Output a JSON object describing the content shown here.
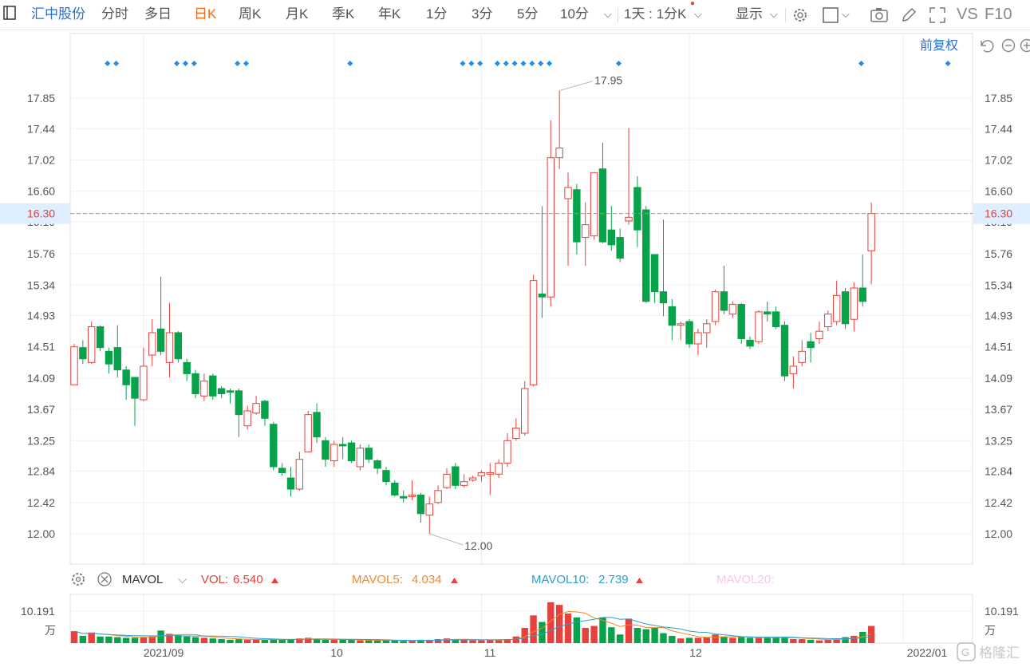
{
  "toolbar": {
    "stock_name": "汇中股份",
    "tabs": [
      "分时",
      "多日",
      "日K",
      "周K",
      "月K",
      "季K",
      "年K",
      "1分",
      "3分",
      "5分",
      "10分"
    ],
    "active_tab": "日K",
    "period_select": "1天 : 1分K",
    "display_label": "显示",
    "vs_label": "VS",
    "f10_label": "F10",
    "restore_label": "前复权"
  },
  "colors": {
    "up": "#e8403c",
    "down": "#07a34a",
    "price_line": "#f07d2a",
    "ma5": "#f08a2a",
    "ma10": "#2aa0d0",
    "ma20": "#f0a0e0",
    "marker": "#1e8cf0"
  },
  "current_price": "16.30",
  "annotations": {
    "high": "17.95",
    "low": "12.00"
  },
  "y_ticks": [
    "17.85",
    "17.44",
    "17.02",
    "16.60",
    "16.19",
    "15.76",
    "15.34",
    "14.93",
    "14.51",
    "14.09",
    "13.67",
    "13.25",
    "12.84",
    "12.42",
    "12.00"
  ],
  "x_ticks": [
    "2021/09",
    "10",
    "11",
    "12",
    "2022/01"
  ],
  "volume": {
    "indicator": "MAVOL",
    "vol_label": "VOL:",
    "vol_value": "6.540",
    "ma5_label": "MAVOL5:",
    "ma5_value": "4.034",
    "ma10_label": "MAVOL10:",
    "ma10_value": "2.739",
    "ma20_label": "MAVOL20:",
    "axis_value": "10.191",
    "axis_unit": "万"
  },
  "watermark": "格隆汇",
  "chart_data": {
    "type": "candlestick",
    "ylim": [
      11.75,
      18.2
    ],
    "candles": [
      [
        14.0,
        14.51,
        14.55,
        14.0
      ],
      [
        14.5,
        14.35,
        14.6,
        14.28
      ],
      [
        14.3,
        14.78,
        14.85,
        14.28
      ],
      [
        14.78,
        14.5,
        14.8,
        14.45
      ],
      [
        14.45,
        14.28,
        14.5,
        14.15
      ],
      [
        14.5,
        14.2,
        14.8,
        14.1
      ],
      [
        14.2,
        14.0,
        14.25,
        13.8
      ],
      [
        14.1,
        13.82,
        14.1,
        13.45
      ],
      [
        13.8,
        14.25,
        14.5,
        13.78
      ],
      [
        14.4,
        14.7,
        14.88,
        14.25
      ],
      [
        14.75,
        14.45,
        15.45,
        14.4
      ],
      [
        14.3,
        14.7,
        15.1,
        14.1
      ],
      [
        14.7,
        14.35,
        14.72,
        14.3
      ],
      [
        14.3,
        14.15,
        14.35,
        14.05
      ],
      [
        14.15,
        13.88,
        14.2,
        13.82
      ],
      [
        13.85,
        14.05,
        14.15,
        13.78
      ],
      [
        14.12,
        13.85,
        14.15,
        13.8
      ],
      [
        13.95,
        13.88,
        13.98,
        13.82
      ],
      [
        13.92,
        13.9,
        13.95,
        13.75
      ],
      [
        13.92,
        13.6,
        13.95,
        13.3
      ],
      [
        13.45,
        13.65,
        13.72,
        13.4
      ],
      [
        13.62,
        13.75,
        13.85,
        13.6
      ],
      [
        13.78,
        13.55,
        13.8,
        13.45
      ],
      [
        13.47,
        12.9,
        13.5,
        12.85
      ],
      [
        12.88,
        12.82,
        12.95,
        12.78
      ],
      [
        12.75,
        12.6,
        12.9,
        12.5
      ],
      [
        12.6,
        13.0,
        13.1,
        12.58
      ],
      [
        13.1,
        13.6,
        13.65,
        13.1
      ],
      [
        13.63,
        13.3,
        13.75,
        13.22
      ],
      [
        13.25,
        13.0,
        13.3,
        12.9
      ],
      [
        12.98,
        13.2,
        13.25,
        12.9
      ],
      [
        13.2,
        13.18,
        13.3,
        13.0
      ],
      [
        13.22,
        12.98,
        13.25,
        12.95
      ],
      [
        12.9,
        13.15,
        13.2,
        12.85
      ],
      [
        13.15,
        13.0,
        13.2,
        12.95
      ],
      [
        12.98,
        12.88,
        13.0,
        12.8
      ],
      [
        12.85,
        12.7,
        12.9,
        12.65
      ],
      [
        12.68,
        12.52,
        12.72,
        12.5
      ],
      [
        12.5,
        12.48,
        12.58,
        12.42
      ],
      [
        12.5,
        12.52,
        12.72,
        12.45
      ],
      [
        12.52,
        12.27,
        12.55,
        12.15
      ],
      [
        12.25,
        12.4,
        12.5,
        12.0
      ],
      [
        12.42,
        12.58,
        12.65,
        12.4
      ],
      [
        12.62,
        12.8,
        12.88,
        12.6
      ],
      [
        12.9,
        12.65,
        12.95,
        12.6
      ],
      [
        12.65,
        12.7,
        12.8,
        12.62
      ],
      [
        12.72,
        12.75,
        12.78,
        12.7
      ],
      [
        12.78,
        12.82,
        12.85,
        12.7
      ],
      [
        12.8,
        12.82,
        12.95,
        12.52
      ],
      [
        12.8,
        12.95,
        13.0,
        12.75
      ],
      [
        12.95,
        13.25,
        13.35,
        12.9
      ],
      [
        13.28,
        13.42,
        13.55,
        13.25
      ],
      [
        13.35,
        13.95,
        14.05,
        13.32
      ],
      [
        14.0,
        15.4,
        15.48,
        13.98
      ],
      [
        15.22,
        15.18,
        16.4,
        14.9
      ],
      [
        15.18,
        17.05,
        17.55,
        15.05
      ],
      [
        17.05,
        17.18,
        17.95,
        16.9
      ],
      [
        16.5,
        16.65,
        16.85,
        15.6
      ],
      [
        16.62,
        15.92,
        16.7,
        15.75
      ],
      [
        15.98,
        16.15,
        16.45,
        15.6
      ],
      [
        16.0,
        16.85,
        16.85,
        15.95
      ],
      [
        16.9,
        15.92,
        17.25,
        15.9
      ],
      [
        16.08,
        15.88,
        16.4,
        15.8
      ],
      [
        15.98,
        15.7,
        16.1,
        15.65
      ],
      [
        16.2,
        16.25,
        17.45,
        16.15
      ],
      [
        16.65,
        16.08,
        16.8,
        15.85
      ],
      [
        16.35,
        15.12,
        16.4,
        15.1
      ],
      [
        15.75,
        15.25,
        15.75,
        15.1
      ],
      [
        15.25,
        15.1,
        16.22,
        14.92
      ],
      [
        15.05,
        14.8,
        15.15,
        14.6
      ],
      [
        14.8,
        14.82,
        14.85,
        14.6
      ],
      [
        14.85,
        14.55,
        14.88,
        14.5
      ],
      [
        14.55,
        14.7,
        14.75,
        14.4
      ],
      [
        14.7,
        14.82,
        14.88,
        14.5
      ],
      [
        14.85,
        15.25,
        15.28,
        14.8
      ],
      [
        15.25,
        15.0,
        15.6,
        14.95
      ],
      [
        14.95,
        15.08,
        15.12,
        14.9
      ],
      [
        15.08,
        14.62,
        15.1,
        14.55
      ],
      [
        14.6,
        14.52,
        14.65,
        14.48
      ],
      [
        14.58,
        14.98,
        15.0,
        14.55
      ],
      [
        14.98,
        14.95,
        15.12,
        14.85
      ],
      [
        14.98,
        14.78,
        15.05,
        14.75
      ],
      [
        14.8,
        14.12,
        14.85,
        14.05
      ],
      [
        14.15,
        14.25,
        14.38,
        13.95
      ],
      [
        14.3,
        14.45,
        14.6,
        14.25
      ],
      [
        14.58,
        14.5,
        14.7,
        14.3
      ],
      [
        14.62,
        14.72,
        14.85,
        14.55
      ],
      [
        14.78,
        14.95,
        15.0,
        14.72
      ],
      [
        14.85,
        15.2,
        15.4,
        14.8
      ],
      [
        15.25,
        14.82,
        15.3,
        14.75
      ],
      [
        14.88,
        15.3,
        15.38,
        14.72
      ],
      [
        15.3,
        15.12,
        15.75,
        15.05
      ],
      [
        15.8,
        16.3,
        16.45,
        15.35
      ]
    ],
    "volumes": [
      1.8,
      1.1,
      1.6,
      1.0,
      1.0,
      0.9,
      0.8,
      0.8,
      0.9,
      1.0,
      1.9,
      1.4,
      1.2,
      1.0,
      0.9,
      0.8,
      0.7,
      0.6,
      0.5,
      0.6,
      0.5,
      0.5,
      0.5,
      0.6,
      0.5,
      0.6,
      0.7,
      0.8,
      0.6,
      0.5,
      0.5,
      0.5,
      0.5,
      0.4,
      0.4,
      0.4,
      0.4,
      0.4,
      0.3,
      0.3,
      0.5,
      0.5,
      0.6,
      0.7,
      0.6,
      0.5,
      0.4,
      0.4,
      0.5,
      0.5,
      0.6,
      1.0,
      2.3,
      4.2,
      3.2,
      6.2,
      5.8,
      4.5,
      3.9,
      2.3,
      2.6,
      3.9,
      2.4,
      1.3,
      3.7,
      2.3,
      2.1,
      2.3,
      1.5,
      1.1,
      0.7,
      0.8,
      0.8,
      0.9,
      1.3,
      1.0,
      0.8,
      0.9,
      0.8,
      0.8,
      0.9,
      0.8,
      0.9,
      0.6,
      0.6,
      0.5,
      0.4,
      0.5,
      0.7,
      0.9,
      1.1,
      1.7,
      2.6
    ]
  }
}
